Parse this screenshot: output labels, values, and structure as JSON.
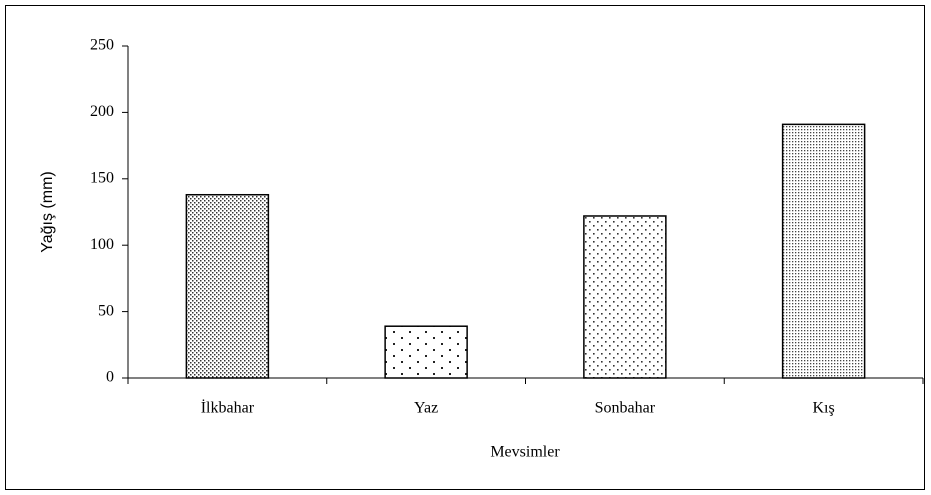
{
  "chart_data": {
    "type": "bar",
    "categories": [
      "İlkbahar",
      "Yaz",
      "Sonbahar",
      "Kış"
    ],
    "values": [
      138,
      39,
      122,
      191
    ],
    "ylim": [
      0,
      250
    ],
    "yticks": [
      0,
      50,
      100,
      150,
      200,
      250
    ],
    "y_label": "Yağış (mm)",
    "x_label": "Mevsimler"
  }
}
